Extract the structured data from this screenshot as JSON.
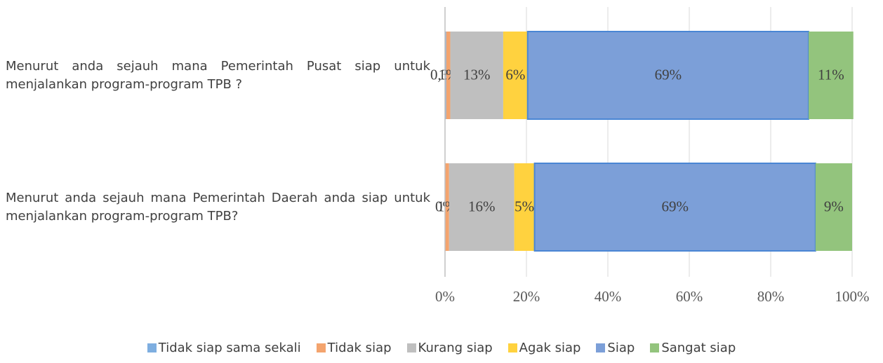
{
  "chart_data": {
    "type": "stacked-bar-horizontal",
    "categories": [
      "Menurut anda sejauh mana Pemerintah Pusat siap untuk menjalankan program-program TPB ?",
      "Menurut anda sejauh mana Pemerintah Daerah anda siap untuk menjalankan program-program TPB?"
    ],
    "series": [
      {
        "name": "Tidak siap sama sekali",
        "color": "#7eaee0",
        "values": [
          0.3,
          0
        ],
        "value_labels": [
          "0,3%",
          "0%"
        ]
      },
      {
        "name": "Tidak siap",
        "color": "#f4a46e",
        "values": [
          1,
          1
        ],
        "value_labels": [
          "1%",
          "1%"
        ]
      },
      {
        "name": "Kurang siap",
        "color": "#bfbfbf",
        "values": [
          13,
          16
        ],
        "value_labels": [
          "13%",
          "16%"
        ]
      },
      {
        "name": "Agak siap",
        "color": "#ffd23f",
        "values": [
          6,
          5
        ],
        "value_labels": [
          "6%",
          "5%"
        ]
      },
      {
        "name": "Siap",
        "color": "#7c9fd8",
        "values": [
          69,
          69
        ],
        "value_labels": [
          "69%",
          "69%"
        ]
      },
      {
        "name": "Sangat siap",
        "color": "#93c47d",
        "values": [
          11,
          9
        ],
        "value_labels": [
          "11%",
          "9%"
        ]
      }
    ],
    "xlim": [
      0,
      100
    ],
    "xticks": [
      {
        "value": 0,
        "label": "0%"
      },
      {
        "value": 20,
        "label": "20%"
      },
      {
        "value": 40,
        "label": "40%"
      },
      {
        "value": 60,
        "label": "60%"
      },
      {
        "value": 80,
        "label": "80%"
      },
      {
        "value": 100,
        "label": "100%"
      }
    ],
    "grid": true,
    "legend": "bottom"
  }
}
